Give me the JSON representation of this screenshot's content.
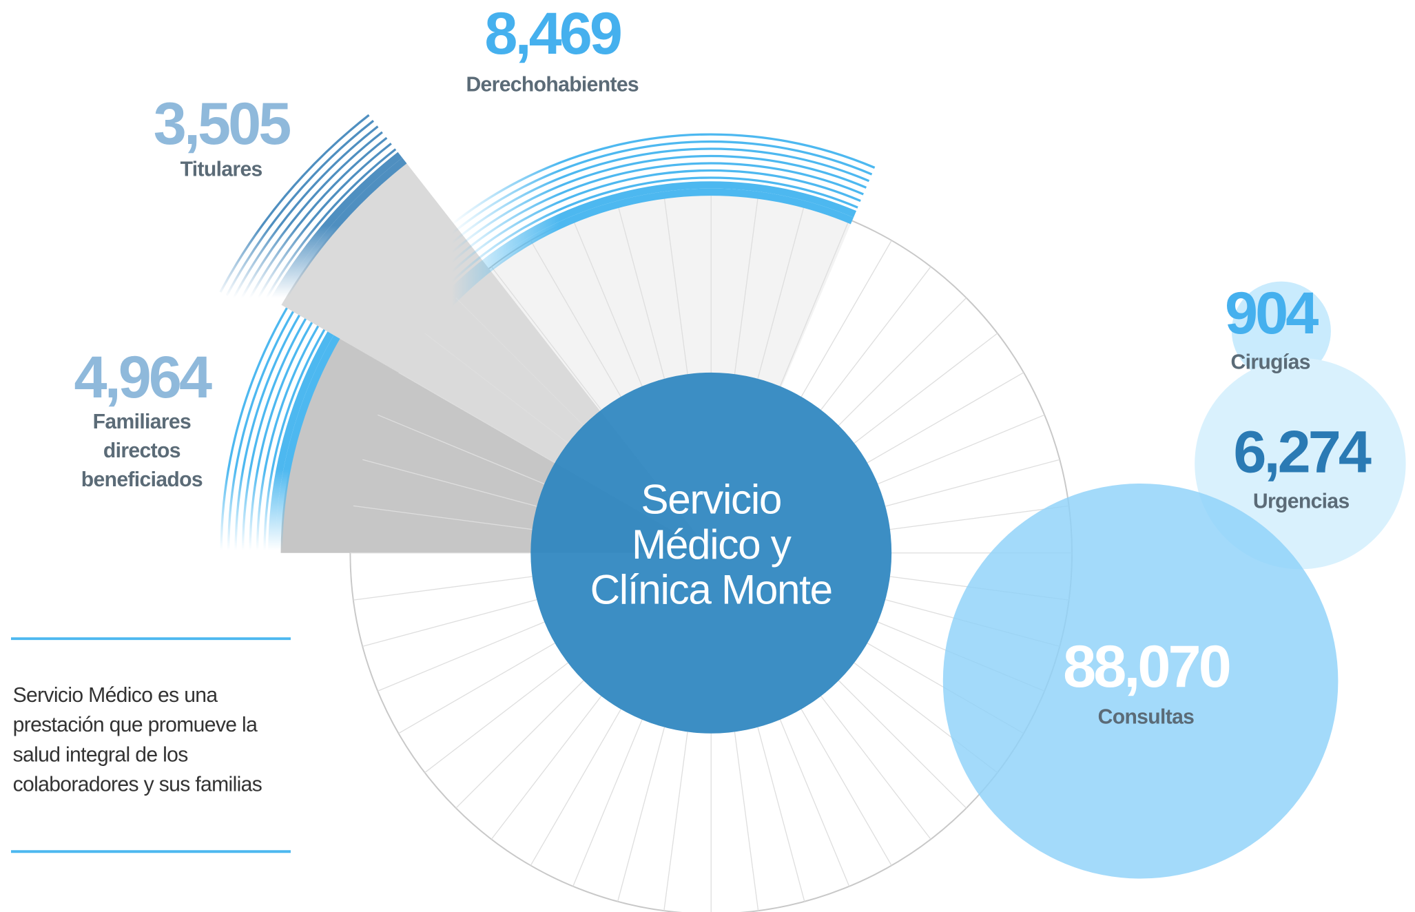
{
  "center_title": [
    "Servicio",
    "Médico y",
    "Clínica Monte"
  ],
  "stats": [
    {
      "value": "8,469",
      "label": [
        "Derechohabientes"
      ]
    },
    {
      "value": "3,505",
      "label": [
        "Titulares"
      ]
    },
    {
      "value": "4,964",
      "label": [
        "Familiares",
        "directos",
        "beneficiados"
      ]
    },
    {
      "value": "904",
      "label": [
        "Cirugías"
      ]
    },
    {
      "value": "6,274",
      "label": [
        "Urgencias"
      ]
    },
    {
      "value": "88,070",
      "label": [
        "Consultas"
      ]
    }
  ],
  "description": [
    "Servicio Médico es una",
    "prestación que promueve la",
    "salud integral de los",
    "colaboradores y sus familias"
  ]
}
